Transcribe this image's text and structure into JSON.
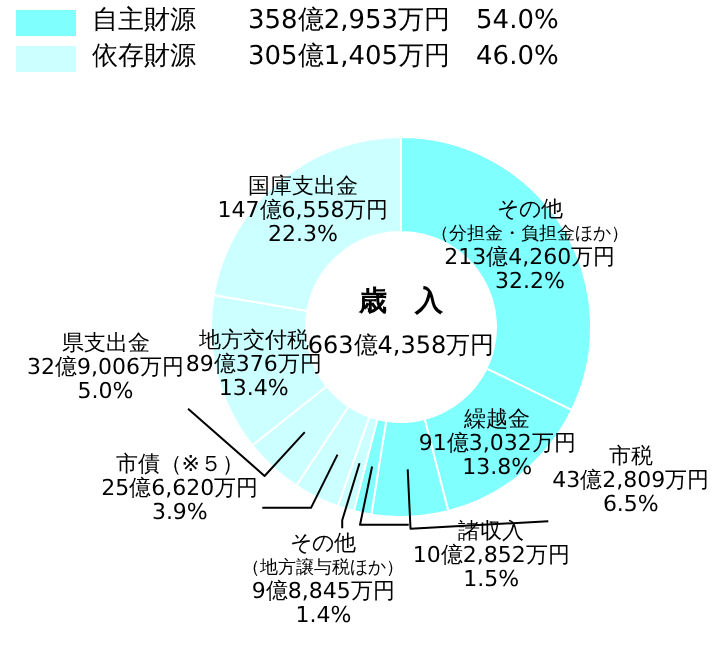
{
  "chart_data": {
    "type": "donut",
    "title": "歳　入",
    "subtitle": "663億4,358万円",
    "categories": [
      "その他（分担金・負担金ほか）",
      "繰越金",
      "市税",
      "諸収入",
      "その他（地方譲与税ほか）",
      "市債（※５）",
      "県支出金",
      "地方交付税",
      "国庫支出金"
    ],
    "values": [
      32.2,
      13.8,
      6.5,
      1.5,
      1.4,
      3.9,
      5.0,
      13.4,
      22.3
    ],
    "colors": [
      "#80ffff",
      "#80ffff",
      "#80ffff",
      "#80ffff",
      "#ccffff",
      "#ccffff",
      "#ccffff",
      "#ccffff",
      "#ccffff"
    ],
    "value_labels": [
      "213億4,260万円\n32.2%",
      "91億3,032万円\n13.8%",
      "43億2,809万円\n6.5%",
      "10億2,852万円\n1.5%",
      "9億8,845万円\n1.4%",
      "25億6,620万円\n3.9%",
      "32億9,006万円\n5.0%",
      "89億376万円\n13.4%",
      "147億6,558万円\n22.3%"
    ],
    "annotations": [
      "自主財源　　358億2,953万円　54.0%",
      "依存財源　　305億1,405万円　46.0%"
    ]
  }
}
